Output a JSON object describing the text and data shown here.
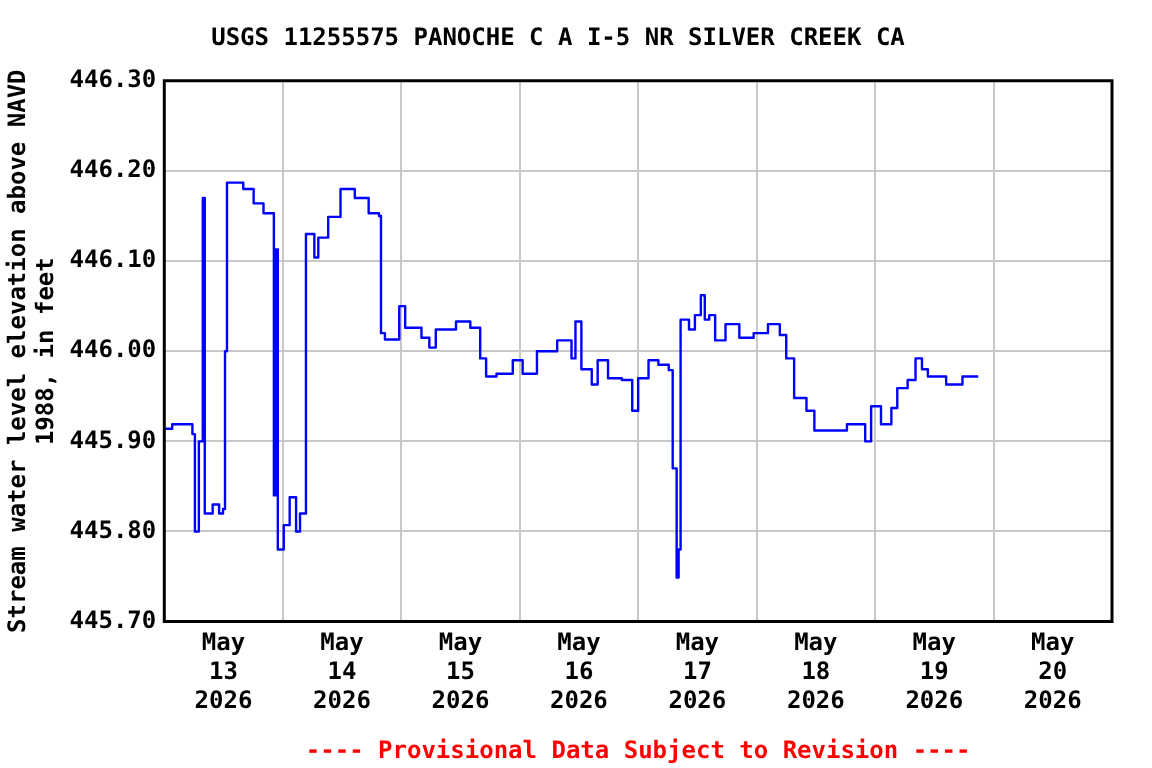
{
  "chart_data": {
    "type": "step",
    "title": "USGS 11255575 PANOCHE C A I-5 NR SILVER CREEK CA",
    "ylabel": "Stream water level elevation above NAVD 1988, in feet",
    "annotations": [
      "---- Provisional Data Subject to Revision ----"
    ],
    "x": [
      "2026-05-13T00:00",
      "2026-05-13T01:36",
      "2026-05-13T05:42",
      "2026-05-13T06:12",
      "2026-05-13T07:00",
      "2026-05-13T07:48",
      "2026-05-13T08:12",
      "2026-05-13T09:48",
      "2026-05-13T11:06",
      "2026-05-13T11:54",
      "2026-05-13T12:18",
      "2026-05-13T12:42",
      "2026-05-13T16:00",
      "2026-05-13T18:06",
      "2026-05-13T20:06",
      "2026-05-13T21:42",
      "2026-05-13T22:12",
      "2026-05-13T22:36",
      "2026-05-13T23:00",
      "2026-05-14T00:12",
      "2026-05-14T01:24",
      "2026-05-14T02:42",
      "2026-05-14T03:30",
      "2026-05-14T04:18",
      "2026-05-14T04:42",
      "2026-05-14T06:24",
      "2026-05-14T07:12",
      "2026-05-14T09:12",
      "2026-05-14T11:42",
      "2026-05-14T14:36",
      "2026-05-14T17:24",
      "2026-05-14T19:30",
      "2026-05-14T19:54",
      "2026-05-14T20:42",
      "2026-05-14T23:36",
      "2026-05-15T00:48",
      "2026-05-15T04:06",
      "2026-05-15T05:42",
      "2026-05-15T07:00",
      "2026-05-15T11:06",
      "2026-05-15T14:00",
      "2026-05-15T16:00",
      "2026-05-15T17:12",
      "2026-05-15T19:18",
      "2026-05-15T22:36",
      "2026-05-16T00:36",
      "2026-05-16T03:30",
      "2026-05-16T07:36",
      "2026-05-16T10:30",
      "2026-05-16T11:18",
      "2026-05-16T12:30",
      "2026-05-16T14:36",
      "2026-05-16T15:48",
      "2026-05-16T17:54",
      "2026-05-16T20:42",
      "2026-05-16T22:48",
      "2026-05-17T00:00",
      "2026-05-17T02:06",
      "2026-05-17T04:06",
      "2026-05-17T06:12",
      "2026-05-17T07:00",
      "2026-05-17T07:48",
      "2026-05-17T08:12",
      "2026-05-17T08:36",
      "2026-05-17T10:18",
      "2026-05-17T11:30",
      "2026-05-17T12:42",
      "2026-05-17T13:30",
      "2026-05-17T14:24",
      "2026-05-17T15:36",
      "2026-05-17T17:42",
      "2026-05-17T20:30",
      "2026-05-17T23:24",
      "2026-05-18T02:18",
      "2026-05-18T04:42",
      "2026-05-18T06:00",
      "2026-05-18T07:36",
      "2026-05-18T08:48",
      "2026-05-18T10:06",
      "2026-05-18T11:42",
      "2026-05-18T17:00",
      "2026-05-18T18:18",
      "2026-05-18T22:00",
      "2026-05-18T23:12",
      "2026-05-19T01:12",
      "2026-05-19T03:18",
      "2026-05-19T04:30",
      "2026-05-19T06:36",
      "2026-05-19T08:12",
      "2026-05-19T09:30",
      "2026-05-19T10:42",
      "2026-05-19T14:24",
      "2026-05-19T17:42",
      "2026-05-19T20:54"
    ],
    "series": [
      {
        "color": "#0000ff",
        "values": [
          445.914,
          445.919,
          445.908,
          445.8,
          445.9,
          446.17,
          445.82,
          445.83,
          445.82,
          445.825,
          446.0,
          446.187,
          446.18,
          446.164,
          446.153,
          446.153,
          445.84,
          446.113,
          445.78,
          445.807,
          445.838,
          445.8,
          445.82,
          445.82,
          446.13,
          446.104,
          446.126,
          446.149,
          446.18,
          446.17,
          446.153,
          446.15,
          446.02,
          446.013,
          446.05,
          446.026,
          446.015,
          446.004,
          446.024,
          446.033,
          446.026,
          445.992,
          445.972,
          445.975,
          445.99,
          445.975,
          446.0,
          446.012,
          445.992,
          446.033,
          445.98,
          445.963,
          445.99,
          445.97,
          445.968,
          445.934,
          445.97,
          445.99,
          445.985,
          445.979,
          445.87,
          445.749,
          445.78,
          446.035,
          446.024,
          446.04,
          446.062,
          446.035,
          446.04,
          446.012,
          446.03,
          446.015,
          446.02,
          446.03,
          446.018,
          445.992,
          445.948,
          445.948,
          445.934,
          445.912,
          445.912,
          445.919,
          445.9,
          445.939,
          445.919,
          445.937,
          445.959,
          445.968,
          445.992,
          445.98,
          445.972,
          445.963,
          445.972,
          445.972
        ]
      }
    ],
    "xlim": [
      "2026-05-13T00:00",
      "2026-05-21T00:00"
    ],
    "xticks": [
      {
        "value": "2026-05-13T12:00",
        "label": "May 13 2026"
      },
      {
        "value": "2026-05-14T00:00",
        "label": null
      },
      {
        "value": "2026-05-14T12:00",
        "label": "May 14 2026"
      },
      {
        "value": "2026-05-15T00:00",
        "label": null
      },
      {
        "value": "2026-05-15T12:00",
        "label": "May 15 2026"
      },
      {
        "value": "2026-05-16T00:00",
        "label": null
      },
      {
        "value": "2026-05-16T12:00",
        "label": "May 16 2026"
      },
      {
        "value": "2026-05-17T00:00",
        "label": null
      },
      {
        "value": "2026-05-17T12:00",
        "label": "May 17 2026"
      },
      {
        "value": "2026-05-18T00:00",
        "label": null
      },
      {
        "value": "2026-05-18T12:00",
        "label": "May 18 2026"
      },
      {
        "value": "2026-05-19T00:00",
        "label": null
      },
      {
        "value": "2026-05-19T12:00",
        "label": "May 19 2026"
      },
      {
        "value": "2026-05-20T00:00",
        "label": null
      },
      {
        "value": "2026-05-20T12:00",
        "label": "May 20 2026"
      }
    ],
    "ylim": [
      445.7,
      446.3
    ],
    "yticks": [
      {
        "value": 445.7,
        "label": "445.70"
      },
      {
        "value": 445.8,
        "label": "445.80"
      },
      {
        "value": 445.9,
        "label": "445.90"
      },
      {
        "value": 446.0,
        "label": "446.00"
      },
      {
        "value": 446.1,
        "label": "446.10"
      },
      {
        "value": 446.2,
        "label": "446.20"
      },
      {
        "value": 446.3,
        "label": "446.30"
      }
    ],
    "grid": true,
    "line_style": "solid",
    "marker": "none"
  }
}
